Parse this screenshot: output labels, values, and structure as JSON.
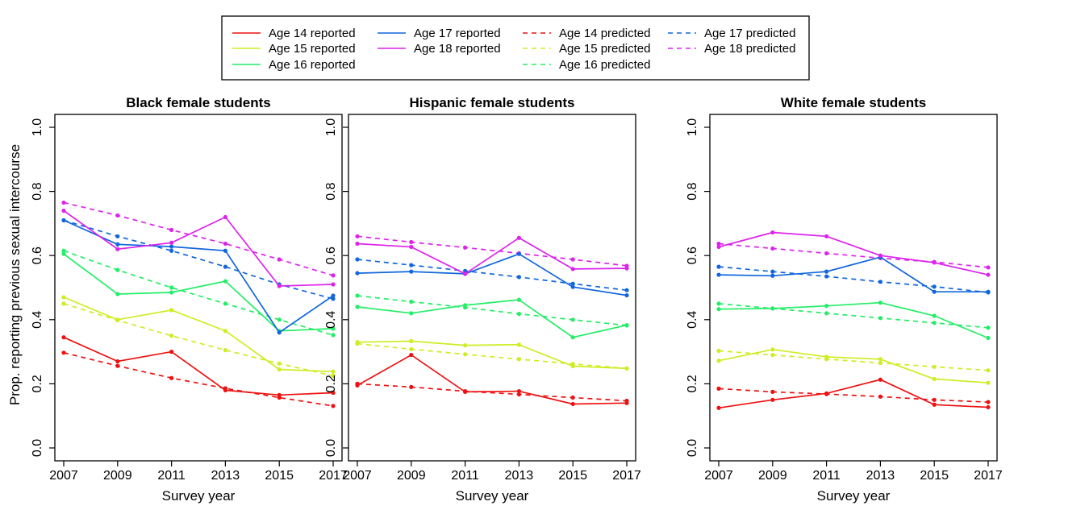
{
  "chart_data": {
    "type": "line",
    "ylabel": "Prop. reporting previous sexual intercourse",
    "xlabel": "Survey year",
    "x": [
      2007,
      2009,
      2011,
      2013,
      2015,
      2017
    ],
    "ylim": [
      0,
      1
    ],
    "yticks": [
      "0.0",
      "0.2",
      "0.4",
      "0.6",
      "0.8",
      "1.0"
    ],
    "xticks": [
      "2007",
      "2009",
      "2011",
      "2013",
      "2015",
      "2017"
    ],
    "legend": {
      "placement": "top",
      "entries": [
        {
          "label": "Age 14 reported",
          "color": "#ee1111",
          "dash": false
        },
        {
          "label": "Age 15 reported",
          "color": "#ccee22",
          "dash": false
        },
        {
          "label": "Age 16 reported",
          "color": "#22ee66",
          "dash": false
        },
        {
          "label": "Age 17 reported",
          "color": "#1166dd",
          "dash": false
        },
        {
          "label": "Age 18 reported",
          "color": "#dd22ee",
          "dash": false
        },
        {
          "label": "Age 14 predicted",
          "color": "#ee1111",
          "dash": true
        },
        {
          "label": "Age 15 predicted",
          "color": "#ccee22",
          "dash": true
        },
        {
          "label": "Age 16 predicted",
          "color": "#22ee66",
          "dash": true
        },
        {
          "label": "Age 17 predicted",
          "color": "#1166dd",
          "dash": true
        },
        {
          "label": "Age 18 predicted",
          "color": "#dd22ee",
          "dash": true
        }
      ]
    },
    "panels": [
      {
        "title": "Black female students",
        "series": [
          {
            "name": "Age 14 reported",
            "color": "#ee1111",
            "dash": false,
            "values": [
              0.345,
              0.27,
              0.3,
              0.18,
              0.165,
              0.172
            ]
          },
          {
            "name": "Age 15 reported",
            "color": "#ccee22",
            "dash": false,
            "values": [
              0.47,
              0.4,
              0.43,
              0.365,
              0.245,
              0.238
            ]
          },
          {
            "name": "Age 16 reported",
            "color": "#22ee66",
            "dash": false,
            "values": [
              0.605,
              0.48,
              0.485,
              0.52,
              0.365,
              0.372
            ]
          },
          {
            "name": "Age 17 reported",
            "color": "#1166dd",
            "dash": false,
            "values": [
              0.71,
              0.635,
              0.628,
              0.615,
              0.36,
              0.475
            ]
          },
          {
            "name": "Age 18 reported",
            "color": "#dd22ee",
            "dash": false,
            "values": [
              0.74,
              0.62,
              0.64,
              0.72,
              0.505,
              0.51
            ]
          },
          {
            "name": "Age 14 predicted",
            "color": "#ee1111",
            "dash": true,
            "values": [
              0.297,
              0.256,
              0.218,
              0.186,
              0.157,
              0.131
            ]
          },
          {
            "name": "Age 15 predicted",
            "color": "#ccee22",
            "dash": true,
            "values": [
              0.45,
              0.398,
              0.35,
              0.305,
              0.263,
              0.225
            ]
          },
          {
            "name": "Age 16 predicted",
            "color": "#22ee66",
            "dash": true,
            "values": [
              0.615,
              0.555,
              0.5,
              0.45,
              0.4,
              0.352
            ]
          },
          {
            "name": "Age 17 predicted",
            "color": "#1166dd",
            "dash": true,
            "values": [
              0.71,
              0.66,
              0.615,
              0.565,
              0.51,
              0.465
            ]
          },
          {
            "name": "Age 18 predicted",
            "color": "#dd22ee",
            "dash": true,
            "values": [
              0.765,
              0.725,
              0.68,
              0.637,
              0.588,
              0.538
            ]
          }
        ]
      },
      {
        "title": "Hispanic female students",
        "series": [
          {
            "name": "Age 14 reported",
            "color": "#ee1111",
            "dash": false,
            "values": [
              0.195,
              0.29,
              0.175,
              0.177,
              0.137,
              0.14
            ]
          },
          {
            "name": "Age 15 reported",
            "color": "#ccee22",
            "dash": false,
            "values": [
              0.33,
              0.333,
              0.32,
              0.322,
              0.255,
              0.248
            ]
          },
          {
            "name": "Age 16 reported",
            "color": "#22ee66",
            "dash": false,
            "values": [
              0.44,
              0.42,
              0.445,
              0.462,
              0.345,
              0.383
            ]
          },
          {
            "name": "Age 17 reported",
            "color": "#1166dd",
            "dash": false,
            "values": [
              0.545,
              0.55,
              0.543,
              0.605,
              0.502,
              0.476
            ]
          },
          {
            "name": "Age 18 reported",
            "color": "#dd22ee",
            "dash": false,
            "values": [
              0.637,
              0.627,
              0.543,
              0.655,
              0.558,
              0.56
            ]
          },
          {
            "name": "Age 14 predicted",
            "color": "#ee1111",
            "dash": true,
            "values": [
              0.2,
              0.19,
              0.177,
              0.167,
              0.157,
              0.147
            ]
          },
          {
            "name": "Age 15 predicted",
            "color": "#ccee22",
            "dash": true,
            "values": [
              0.325,
              0.308,
              0.292,
              0.277,
              0.262,
              0.248
            ]
          },
          {
            "name": "Age 16 predicted",
            "color": "#22ee66",
            "dash": true,
            "values": [
              0.475,
              0.456,
              0.438,
              0.418,
              0.4,
              0.382
            ]
          },
          {
            "name": "Age 17 predicted",
            "color": "#1166dd",
            "dash": true,
            "values": [
              0.588,
              0.57,
              0.552,
              0.533,
              0.512,
              0.492
            ]
          },
          {
            "name": "Age 18 predicted",
            "color": "#dd22ee",
            "dash": true,
            "values": [
              0.66,
              0.642,
              0.625,
              0.607,
              0.588,
              0.568
            ]
          }
        ]
      },
      {
        "title": "White female students",
        "series": [
          {
            "name": "Age 14 reported",
            "color": "#ee1111",
            "dash": false,
            "values": [
              0.125,
              0.15,
              0.17,
              0.213,
              0.135,
              0.127
            ]
          },
          {
            "name": "Age 15 reported",
            "color": "#ccee22",
            "dash": false,
            "values": [
              0.272,
              0.307,
              0.284,
              0.277,
              0.215,
              0.203
            ]
          },
          {
            "name": "Age 16 reported",
            "color": "#22ee66",
            "dash": false,
            "values": [
              0.433,
              0.435,
              0.443,
              0.453,
              0.412,
              0.343
            ]
          },
          {
            "name": "Age 17 reported",
            "color": "#1166dd",
            "dash": false,
            "values": [
              0.54,
              0.537,
              0.55,
              0.595,
              0.487,
              0.487
            ]
          },
          {
            "name": "Age 18 reported",
            "color": "#dd22ee",
            "dash": false,
            "values": [
              0.627,
              0.672,
              0.66,
              0.6,
              0.578,
              0.54
            ]
          },
          {
            "name": "Age 14 predicted",
            "color": "#ee1111",
            "dash": true,
            "values": [
              0.185,
              0.175,
              0.168,
              0.16,
              0.15,
              0.143
            ]
          },
          {
            "name": "Age 15 predicted",
            "color": "#ccee22",
            "dash": true,
            "values": [
              0.303,
              0.29,
              0.277,
              0.265,
              0.253,
              0.242
            ]
          },
          {
            "name": "Age 16 predicted",
            "color": "#22ee66",
            "dash": true,
            "values": [
              0.45,
              0.435,
              0.42,
              0.405,
              0.39,
              0.375
            ]
          },
          {
            "name": "Age 17 predicted",
            "color": "#1166dd",
            "dash": true,
            "values": [
              0.565,
              0.55,
              0.535,
              0.518,
              0.503,
              0.485
            ]
          },
          {
            "name": "Age 18 predicted",
            "color": "#dd22ee",
            "dash": true,
            "values": [
              0.637,
              0.622,
              0.607,
              0.592,
              0.58,
              0.563
            ]
          }
        ]
      }
    ]
  }
}
